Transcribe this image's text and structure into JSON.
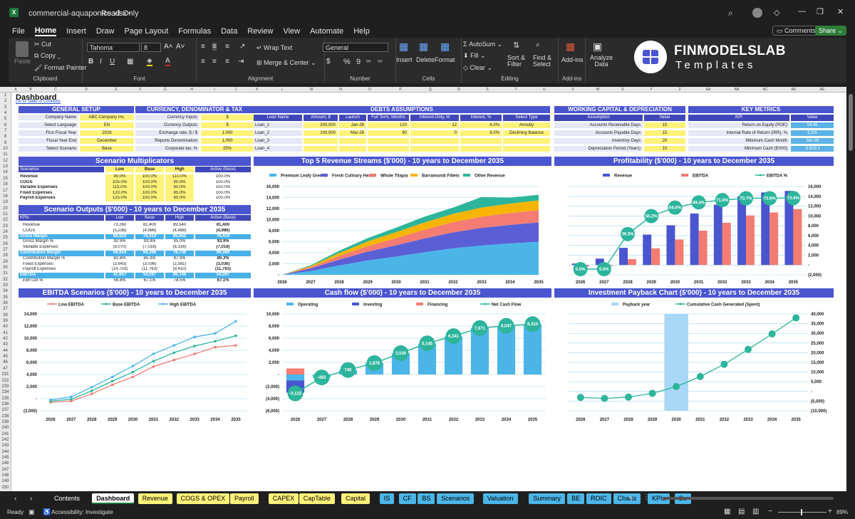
{
  "window": {
    "filename": "commercial-aquaponics.xlsx",
    "sep": "-",
    "mode": "Read-Only"
  },
  "menu": [
    "File",
    "Home",
    "Insert",
    "Draw",
    "Page Layout",
    "Formulas",
    "Data",
    "Review",
    "View",
    "Automate",
    "Help"
  ],
  "menu_right": {
    "comments": "Comments",
    "share": "Share"
  },
  "ribbon": {
    "paste": "Paste",
    "cut": "Cut",
    "copy": "Copy",
    "format_painter": "Format Painter",
    "clipboard": "Clipboard",
    "font_name": "Tahoma",
    "font_size": "8",
    "font": "Font",
    "wrap_text": "Wrap Text",
    "merge_center": "Merge & Center",
    "alignment": "Alignment",
    "number_format": "General",
    "number": "Number",
    "insert": "Insert",
    "delete": "Delete",
    "format": "Format",
    "cells": "Cells",
    "autosum": "AutoSum",
    "fill": "Fill",
    "clear": "Clear",
    "sort_filter": "Sort & Filter",
    "find_select": "Find & Select",
    "editing": "Editing",
    "addins": "Add-ins",
    "addins_group": "Add-ins",
    "analyze_data": "Analyze Data",
    "brand_main": "FINMODELSLAB",
    "brand_sub": "Templates"
  },
  "columns": [
    "A",
    "B",
    "C",
    "D",
    "E",
    "F",
    "G",
    "H",
    "I",
    "J",
    "K",
    "L",
    "M",
    "N",
    "O",
    "P",
    "Q",
    "R",
    "S",
    "T",
    "U",
    "V",
    "W",
    "X",
    "Y",
    "Z",
    "AA",
    "AB",
    "AC",
    "AD",
    "AE"
  ],
  "dashboard": {
    "title": "Dashboard",
    "toc_link": "Go to Table of Contents"
  },
  "general_setup": {
    "title": "GENERAL SETUP",
    "rows": [
      [
        "Company Name",
        "ABC Company Inc."
      ],
      [
        "Select Language",
        "EN"
      ],
      [
        "First Fiscal Year",
        "2026"
      ],
      [
        "Fiscal Year End",
        "December"
      ],
      [
        "Select Scenario",
        "Base"
      ]
    ]
  },
  "currency": {
    "title": "CURRENCY, DENOMINATOR & TAX",
    "rows": [
      [
        "Currency Inputs",
        "$"
      ],
      [
        "Currency Outputs",
        "$"
      ],
      [
        "Exchange rate, $ / $",
        "1.000"
      ],
      [
        "Reports Denomination",
        "1,000"
      ],
      [
        "Corporate tax, %",
        "25%"
      ]
    ]
  },
  "debts": {
    "title": "DEBTS ASSUMPTIONS",
    "headers": [
      "Loan Name",
      "Amount, $",
      "Launch",
      "Full Term, Months",
      "Interest-Only, M",
      "Interest, %",
      "Select Type"
    ],
    "rows": [
      [
        "Loan_1",
        "200,000",
        "Jan-26",
        "120",
        "12",
        "6.0%",
        "Annuity"
      ],
      [
        "Loan_2",
        "100,000",
        "Mar-26",
        "90",
        "0",
        "8.0%",
        "Declining Balance"
      ],
      [
        "Loan_3",
        "",
        "",
        "",
        "",
        "",
        ""
      ],
      [
        "Loan_4",
        "",
        "",
        "",
        "",
        "",
        ""
      ]
    ]
  },
  "wc": {
    "title": "WORKING CAPITAL & DEPRECIATION",
    "headers": [
      "Assumption",
      "Value"
    ],
    "rows": [
      [
        "Accounts Receivable Days",
        "15"
      ],
      [
        "Accounts Payable Days",
        "15"
      ],
      [
        "Inventory Days",
        "20"
      ],
      [
        "Depreciation Period (Years)",
        "10"
      ]
    ]
  },
  "metrics": {
    "title": "KEY METRICS",
    "headers": [
      "KPI",
      "Value"
    ],
    "rows": [
      [
        "Return on Equity (ROE)",
        "54.45"
      ],
      [
        "Internal Rate of Return (IRR), %",
        "3.2%"
      ],
      [
        "Minimum Cash Month",
        "Jan-28"
      ],
      [
        "Minimum Cash ($'000)",
        "-3,619.1"
      ]
    ]
  },
  "multipliers": {
    "title": "Scenario Multiplicators",
    "headers": [
      "Scenarios",
      "Low",
      "Base",
      "High",
      "Active (Base)"
    ],
    "rows": [
      [
        "Revenue",
        "90.0%",
        "100.0%",
        "110.0%",
        "100.0%"
      ],
      [
        "COGS",
        "105.0%",
        "100.0%",
        "90.0%",
        "100.0%"
      ],
      [
        "Variable Expenses",
        "115.0%",
        "100.0%",
        "90.0%",
        "100.0%"
      ],
      [
        "Fixed Expenses",
        "120.0%",
        "100.0%",
        "85.0%",
        "100.0%"
      ],
      [
        "Payroll Expenses",
        "125.0%",
        "100.0%",
        "80.0%",
        "100.0%"
      ]
    ]
  },
  "outputs": {
    "title": "Scenario Outputs ($'000) - 10 years to December 2035",
    "headers": [
      "KPIs",
      "Low",
      "Base",
      "High",
      "Active (Base)"
    ],
    "rows": [
      [
        "Revenue",
        "73,260",
        "81,400",
        "89,540",
        "81,400",
        "n"
      ],
      [
        "COGS",
        "(5,236)",
        "(4,986)",
        "(4,488)",
        "(4,986)",
        "n"
      ],
      [
        "Gross Margin",
        "68,024",
        "76,414",
        "85,052",
        "76,414",
        "h"
      ],
      [
        "Gross Margin %",
        "92.9%",
        "93.9%",
        "95.0%",
        "93.9%",
        "i"
      ],
      [
        "Variable Expenses",
        "(8,070)",
        "(7,018)",
        "(6,316)",
        "(7,018)",
        "n"
      ],
      [
        "Contribution Margin",
        "59,954",
        "69,396",
        "78,736",
        "69,396",
        "h"
      ],
      [
        "Contribution Margin %",
        "81.8%",
        "85.3%",
        "87.9%",
        "85.3%",
        "i"
      ],
      [
        "Fixed Expenses",
        "(3,643)",
        "(3,036)",
        "(2,581)",
        "(3,036)",
        "n"
      ],
      [
        "Payroll Expenses",
        "(14,703)",
        "(11,763)",
        "(9,410)",
        "(11,763)",
        "n"
      ],
      [
        "EBITDA",
        "41,607",
        "54,597",
        "66,746",
        "54,597",
        "h"
      ],
      [
        "EBITDA %",
        "56.8%",
        "67.1%",
        "74.5%",
        "67.1%",
        "i"
      ]
    ]
  },
  "rev_chart": {
    "title": "Top 5 Revenue Streams ($'000) - 10 years to December 2035",
    "legend": [
      "Premium Leafy Greens",
      "Fresh Culinary Herbs",
      "Whole Tilapia",
      "Barramundi Fillets",
      "Other Revenue"
    ]
  },
  "prof_chart": {
    "title": "Profitability ($'000) - 10 years to December 2035",
    "legend": [
      "Revenue",
      "EBITDA",
      "EBITDA %"
    ]
  },
  "ebitda_chart": {
    "title": "EBITDA Scenarios ($'000) - 10 years to December 2035",
    "legend": [
      "Low EBITDA",
      "Base EBITDA",
      "High EBITDA"
    ]
  },
  "cf_chart": {
    "title": "Cash flow ($'000) - 10 years to December 2035",
    "legend": [
      "Operating",
      "Investing",
      "Financing",
      "Net Cash Flow"
    ]
  },
  "pb_chart": {
    "title": "Investment Payback Chart ($'000) - 10 years to December 2035",
    "legend": [
      "Payback year",
      "Cumulative Cash Generated (Spent)"
    ]
  },
  "chart_data": [
    {
      "type": "area",
      "title": "Top 5 Revenue Streams ($'000) - 10 years to December 2035",
      "categories": [
        "2026",
        "2027",
        "2028",
        "2029",
        "2030",
        "2031",
        "2032",
        "2033",
        "2034",
        "2035"
      ],
      "ylim": [
        0,
        16000
      ],
      "yticks": [
        "-",
        "2,000",
        "4,000",
        "6,000",
        "8,000",
        "10,000",
        "12,000",
        "14,000",
        "16,000"
      ],
      "colors": [
        "#4cb5e8",
        "#5b5fd6",
        "#f47c72",
        "#f7b500",
        "#2db59c"
      ],
      "series": [
        {
          "name": "Premium Leafy Greens",
          "values": [
            0,
            700,
            1700,
            2600,
            3300,
            4100,
            4800,
            5300,
            5700,
            6000
          ]
        },
        {
          "name": "Fresh Culinary Herbs",
          "values": [
            0,
            450,
            1050,
            1600,
            2050,
            2500,
            2900,
            3200,
            3350,
            3500
          ]
        },
        {
          "name": "Whole Tilapia",
          "values": [
            0,
            250,
            650,
            1000,
            1300,
            1600,
            1850,
            2050,
            2150,
            2250
          ]
        },
        {
          "name": "Barramundi Fillets",
          "values": [
            0,
            200,
            550,
            850,
            1100,
            1300,
            1500,
            1650,
            1700,
            1750
          ]
        },
        {
          "name": "Other Revenue",
          "values": [
            0,
            150,
            400,
            600,
            800,
            1050,
            1150,
            1900,
            1100,
            1000
          ]
        }
      ]
    },
    {
      "type": "bar",
      "title": "Profitability ($'000) - 10 years to December 2035",
      "categories": [
        "2026",
        "2027",
        "2028",
        "2029",
        "2030",
        "2031",
        "2032",
        "2033",
        "2034",
        "2035"
      ],
      "ylim": [
        -2000,
        16000
      ],
      "yticks": [
        "(2,000)",
        "-",
        "2,000",
        "4,000",
        "6,000",
        "8,000",
        "10,000",
        "12,000",
        "14,000",
        "16,000"
      ],
      "series": [
        {
          "name": "Revenue",
          "values": [
            300,
            1300,
            3500,
            6200,
            8100,
            10500,
            12300,
            14000,
            14800,
            15100
          ]
        },
        {
          "name": "EBITDA",
          "values": [
            -300,
            -200,
            1200,
            3400,
            5200,
            7000,
            8600,
            10100,
            10700,
            11400
          ]
        },
        {
          "name": "EBITDA %",
          "values": [
            0.0,
            0.0,
            36.5,
            55.2,
            64.0,
            69.4,
            71.8,
            73.7,
            73.8,
            73.9
          ],
          "labels": [
            "0.0%",
            "0.0%",
            "36.5%",
            "55.2%",
            "64.0%",
            "69.4%",
            "71.8%",
            "73.7%",
            "73.8%",
            "73.9%"
          ]
        }
      ]
    },
    {
      "type": "line",
      "title": "EBITDA Scenarios ($'000) - 10 years to December 2035",
      "categories": [
        "2026",
        "2027",
        "2028",
        "2029",
        "2030",
        "2031",
        "2032",
        "2033",
        "2034",
        "2035"
      ],
      "ylim": [
        -2000,
        14000
      ],
      "yticks": [
        "(2,000)",
        "-",
        "2,000",
        "4,000",
        "6,000",
        "8,000",
        "10,000",
        "12,000",
        "14,000"
      ],
      "series": [
        {
          "name": "Low EBITDA",
          "values": [
            -600,
            -400,
            800,
            2300,
            3600,
            5300,
            6400,
            7400,
            8500,
            8800
          ]
        },
        {
          "name": "Base EBITDA",
          "values": [
            -400,
            -100,
            1300,
            2900,
            4400,
            6200,
            7600,
            8700,
            9500,
            10400
          ]
        },
        {
          "name": "High EBITDA",
          "values": [
            -200,
            300,
            1900,
            3600,
            5400,
            7400,
            8800,
            10200,
            10800,
            12800
          ]
        }
      ]
    },
    {
      "type": "bar",
      "title": "Cash flow ($'000) - 10 years to December 2035",
      "categories": [
        "2026",
        "2027",
        "2028",
        "2029",
        "2030",
        "2031",
        "2032",
        "2033",
        "2034",
        "2035"
      ],
      "ylim": [
        -6000,
        10000
      ],
      "yticks": [
        "(6,000)",
        "(4,000)",
        "(2,000)",
        "-",
        "2,000",
        "4,000",
        "6,000",
        "8,000",
        "10,000"
      ],
      "series": [
        {
          "name": "Operating",
          "values": [
            -1000,
            -500,
            700,
            1900,
            3500,
            5100,
            6300,
            7700,
            8000,
            8300
          ]
        },
        {
          "name": "Investing",
          "values": [
            -2000,
            0,
            0,
            0,
            0,
            0,
            0,
            0,
            0,
            0
          ]
        },
        {
          "name": "Financing",
          "values": [
            1000,
            0,
            0,
            0,
            0,
            0,
            0,
            0,
            0,
            0
          ]
        },
        {
          "name": "Net Cash Flow",
          "values": [
            -3123,
            -483,
            740,
            1878,
            3530,
            5145,
            6341,
            7671,
            8047,
            8324
          ],
          "labels": [
            "-3,123",
            "-483",
            "740",
            "1,878",
            "3,530",
            "5,145",
            "6,341",
            "7,671",
            "8,047",
            "8,324"
          ]
        }
      ]
    },
    {
      "type": "line",
      "title": "Investment Payback Chart ($'000) - 10 years to December 2035",
      "categories": [
        "2026",
        "2027",
        "2028",
        "2029",
        "2030",
        "2031",
        "2032",
        "2033",
        "2034",
        "2035"
      ],
      "ylim": [
        -10000,
        40000
      ],
      "yticks": [
        "(10,000)",
        "(5,000)",
        "-",
        "5,000",
        "10,000",
        "15,000",
        "20,000",
        "25,000",
        "30,000",
        "35,000",
        "40,000"
      ],
      "payback_year": "2030",
      "series": [
        {
          "name": "Cumulative Cash Generated (Spent)",
          "values": [
            -3100,
            -3600,
            -2900,
            -1000,
            2500,
            7700,
            14000,
            21700,
            29700,
            38000
          ]
        }
      ]
    }
  ],
  "tabs": [
    [
      "Contents",
      "#1f1f1f",
      "#fff"
    ],
    [
      "Dashboard",
      "#fff",
      "#000"
    ],
    [
      "Revenue",
      "#fff27a",
      "#000"
    ],
    [
      "COGS & OPEX",
      "#fff27a",
      "#000"
    ],
    [
      "Payroll",
      "#fff27a",
      "#000"
    ],
    [
      "CAPEX",
      "#fff27a",
      "#000"
    ],
    [
      "CapTable",
      "#fff27a",
      "#000"
    ],
    [
      "Capital",
      "#fff27a",
      "#000"
    ],
    [
      "IS",
      "#4cb5e8",
      "#000"
    ],
    [
      "CF",
      "#4cb5e8",
      "#000"
    ],
    [
      "BS",
      "#4cb5e8",
      "#000"
    ],
    [
      "Scenarios",
      "#4cb5e8",
      "#000"
    ],
    [
      "Valuation",
      "#4cb5e8",
      "#000"
    ],
    [
      "Summary",
      "#4cb5e8",
      "#000"
    ],
    [
      "BE",
      "#4cb5e8",
      "#000"
    ],
    [
      "ROIC",
      "#4cb5e8",
      "#000"
    ],
    [
      "Charts",
      "#4cb5e8",
      "#000"
    ],
    [
      "KPIs",
      "#4cb5e8",
      "#000"
    ],
    [
      "Se",
      "#4cb5e8",
      "#000"
    ]
  ],
  "status": {
    "ready": "Ready",
    "accessibility": "Accessibility: Investigate",
    "zoom": "89%"
  }
}
